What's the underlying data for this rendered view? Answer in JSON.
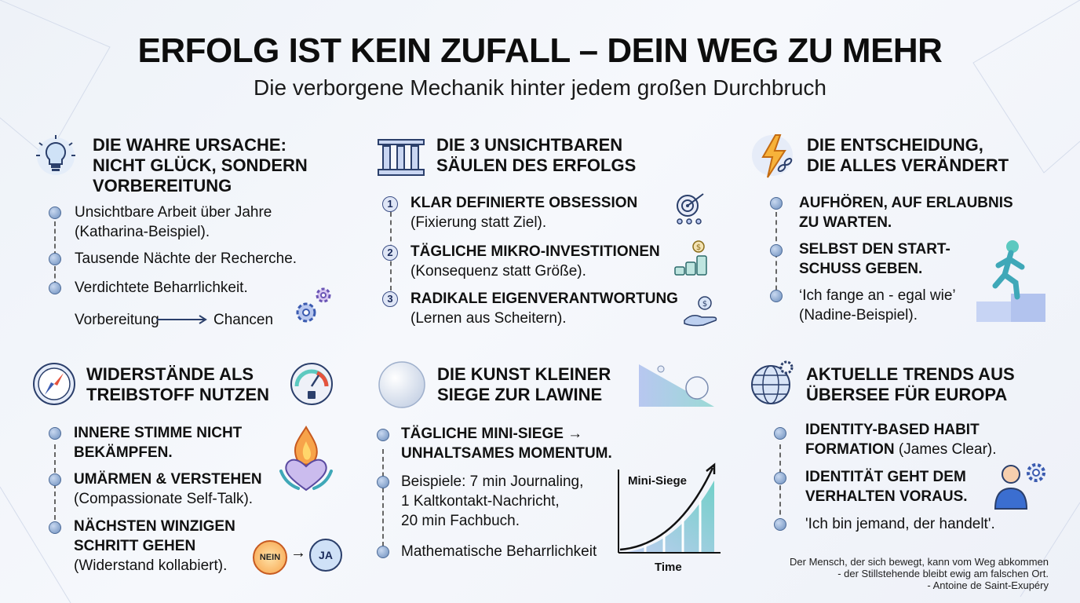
{
  "header": {
    "title": "ERFOLG IST KEIN ZUFALL – DEIN WEG ZU MEHR",
    "subtitle": "Die verborgene Mechanik hinter jedem großen Durchbruch"
  },
  "sections": {
    "ursache": {
      "title_lines": [
        "DIE WAHRE URSACHE:",
        "NICHT GLÜCK, SONDERN",
        "VORBEREITUNG"
      ],
      "items": [
        "Unsichtbare Arbeit über Jahre",
        "(Katharina-Beispiel).",
        "Tausende Nächte der Recherche.",
        "Verdichtete Beharrlichkeit."
      ],
      "flow_from": "Vorbereitung",
      "flow_to": "Chancen",
      "icon": "lightbulb-icon"
    },
    "saeulen": {
      "title_lines": [
        "DIE 3 UNSICHTBAREN",
        "SÄULEN DES ERFOLGS"
      ],
      "items": [
        {
          "num": "1",
          "bold": "KLAR DEFINIERTE OBSESSION",
          "sub": "(Fixierung statt Ziel)."
        },
        {
          "num": "2",
          "bold": "TÄGLICHE MIKRO-INVESTITIONEN",
          "sub": "(Konsequenz statt Größe)."
        },
        {
          "num": "3",
          "bold": "RADIKALE EIGENVERANTWORTUNG",
          "sub": "(Lernen aus Scheitern)."
        }
      ],
      "icon": "pillars-icon"
    },
    "entscheidung": {
      "title_lines": [
        "DIE ENTSCHEIDUNG,",
        "DIE ALLES VERÄNDERT"
      ],
      "items": [
        {
          "lines": [
            "AUFHÖREN, AUF ERLAUBNIS",
            "ZU WARTEN."
          ]
        },
        {
          "lines": [
            "SELBST DEN START-",
            "SCHUSS GEBEN."
          ]
        },
        {
          "lines": [
            "‘Ich fange an - egal wie’",
            "(Nadine-Beispiel)."
          ]
        }
      ],
      "icon": "lightning-chain-icon"
    },
    "widerstaende": {
      "title_lines": [
        "WIDERSTÄNDE ALS",
        "TREIBSTOFF NUTZEN"
      ],
      "items": [
        {
          "bold": [
            "INNERE STIMME NICHT",
            "BEKÄMPFEN."
          ],
          "sub": ""
        },
        {
          "bold": [
            "UMÄRMEN & VERSTEHEN"
          ],
          "sub": "(Compassionate Self-Talk)."
        },
        {
          "bold": [
            "NÄCHSTEN WINZIGEN",
            "SCHRITT GEHEN"
          ],
          "sub": "(Widerstand kollabiert)."
        }
      ],
      "nein": "NEIN",
      "ja": "JA",
      "icon": "compass-icon"
    },
    "kunst": {
      "title_lines": [
        "DIE KUNST KLEINER",
        "SIEGE ZUR LAWINE"
      ],
      "items": [
        {
          "lines": [
            "TÄGLICHE MINI-SIEGE →",
            "UNHALTSAMES MOMENTUM."
          ]
        },
        {
          "lines": [
            "Beispiele: 7 min Journaling,",
            "1 Kaltkontakt-Nachricht,",
            "20 min Fachbuch."
          ]
        },
        {
          "lines": [
            "Mathematische Beharrlichkeit"
          ]
        }
      ],
      "chart_ylabel": "Mini-Siege",
      "chart_xlabel": "Time",
      "icon": "snowball-icon"
    },
    "trends": {
      "title_lines": [
        "AKTUELLE TRENDS AUS",
        "ÜBERSEE FÜR EUROPA"
      ],
      "items": [
        {
          "bold": [
            "IDENTITY-BASED HABIT",
            "FORMATION"
          ],
          "tail": " (James Clear)."
        },
        {
          "bold": [
            "IDENTITÄT GEHT DEM",
            "VERHALTEN VORAUS."
          ],
          "tail": ""
        },
        {
          "plain": "'Ich bin jemand, der handelt'."
        }
      ],
      "icon": "globe-gear-icon"
    }
  },
  "quote": {
    "lines": [
      "Der Mensch, der sich bewegt, kann vom Weg abkommen",
      "- der Stillstehende bleibt ewig am falschen Ort.",
      "- Antoine de Saint-Exupéry"
    ]
  },
  "colors": {
    "accent": "#3b5bb0",
    "dot": "#6d8fbe",
    "fire": "#f07a3a",
    "teal": "#5cc9c0"
  }
}
